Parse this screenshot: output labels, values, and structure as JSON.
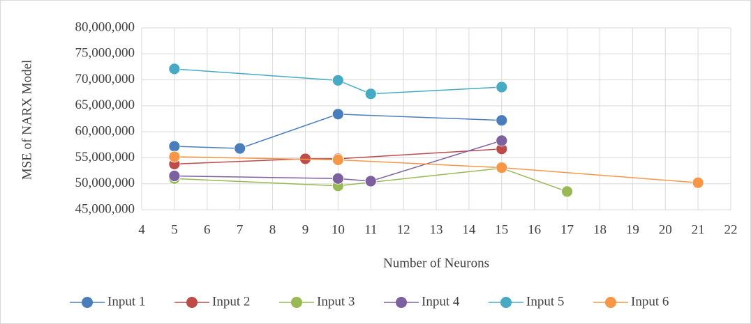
{
  "chart_data": {
    "type": "line",
    "x_label": "Number of Neurons",
    "y_label": "MSE of  NARX Model",
    "xlim": [
      4,
      22
    ],
    "xticks": [
      4,
      5,
      6,
      7,
      8,
      9,
      10,
      11,
      12,
      13,
      14,
      15,
      16,
      17,
      18,
      19,
      20,
      21,
      22
    ],
    "ylim": [
      45000000,
      80000000
    ],
    "yticks": [
      {
        "value": 45000000,
        "label": "45,000,000"
      },
      {
        "value": 50000000,
        "label": "50,000,000"
      },
      {
        "value": 55000000,
        "label": "55,000,000"
      },
      {
        "value": 60000000,
        "label": "60,000,000"
      },
      {
        "value": 65000000,
        "label": "65,000,000"
      },
      {
        "value": 70000000,
        "label": "70,000,000"
      },
      {
        "value": 75000000,
        "label": "75,000,000"
      },
      {
        "value": 80000000,
        "label": "80,000,000"
      }
    ],
    "grid": true,
    "legend": "bottom",
    "series": [
      {
        "name": "Input 1",
        "color": "#4a7ebb",
        "x": [
          5,
          7,
          10,
          15
        ],
        "values": [
          57200000,
          56800000,
          63400000,
          62200000
        ]
      },
      {
        "name": "Input 2",
        "color": "#be4b48",
        "x": [
          5,
          9,
          10,
          15
        ],
        "values": [
          53800000,
          54800000,
          54800000,
          56700000
        ]
      },
      {
        "name": "Input 3",
        "color": "#98b954",
        "x": [
          5,
          10,
          15,
          17
        ],
        "values": [
          51000000,
          49600000,
          53000000,
          48500000
        ]
      },
      {
        "name": "Input 4",
        "color": "#7d60a0",
        "x": [
          5,
          10,
          11,
          15
        ],
        "values": [
          51500000,
          51000000,
          50500000,
          58300000
        ]
      },
      {
        "name": "Input 5",
        "color": "#46aac5",
        "x": [
          5,
          10,
          11,
          15
        ],
        "values": [
          72100000,
          69900000,
          67300000,
          68600000
        ]
      },
      {
        "name": "Input 6",
        "color": "#f79646",
        "x": [
          5,
          10,
          15,
          21
        ],
        "values": [
          55200000,
          54600000,
          53100000,
          50200000
        ]
      }
    ]
  }
}
